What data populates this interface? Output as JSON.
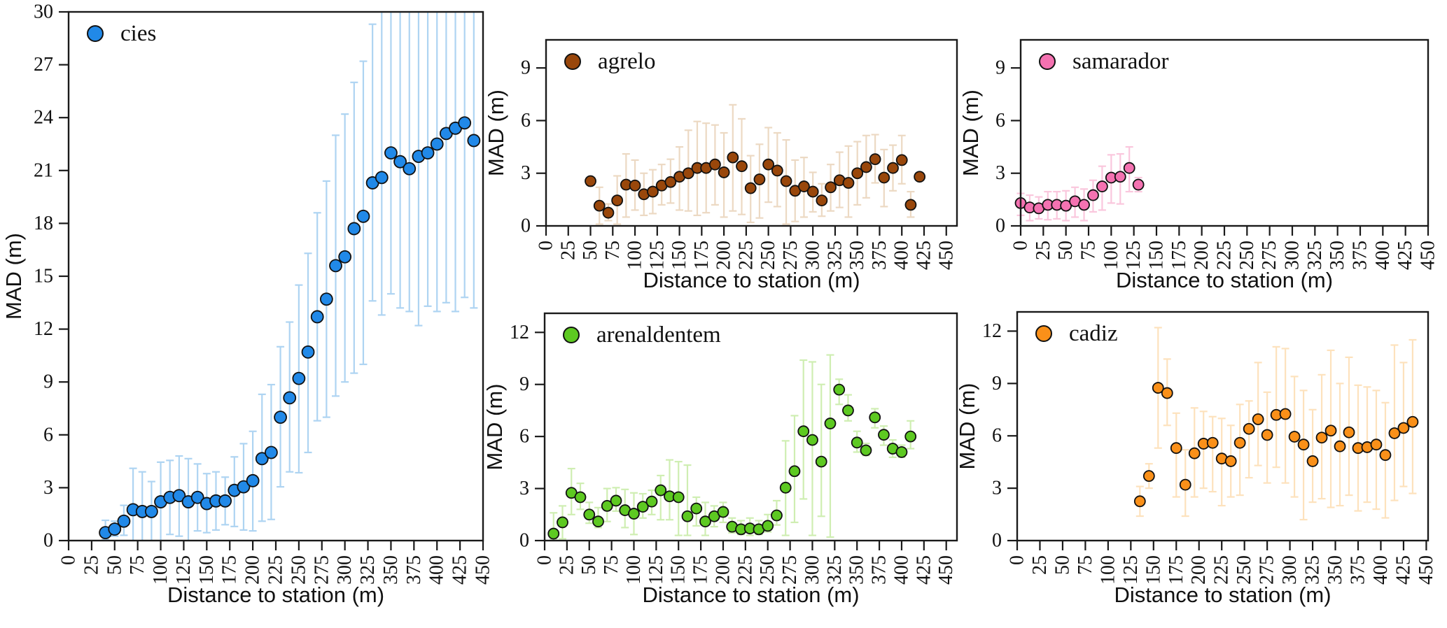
{
  "figure": {
    "xlabel": "Distance to station (m)",
    "ylabel": "MAD (m)",
    "background": "#ffffff",
    "axis_color": "#1a1a1a"
  },
  "chart_data": [
    {
      "type": "scatter",
      "name": "cies",
      "xlabel": "Distance to station (m)",
      "ylabel": "MAD (m)",
      "legend_position": "upper left",
      "grid": false,
      "error_bars": true,
      "marker_color": "#2189e8",
      "errorbar_color": "#aed4f2",
      "xlim": [
        0,
        450
      ],
      "ylim": [
        0,
        30
      ],
      "xticks": [
        0,
        25,
        50,
        75,
        100,
        125,
        150,
        175,
        200,
        225,
        250,
        275,
        300,
        325,
        350,
        375,
        400,
        425,
        450
      ],
      "yticks": [
        0,
        3,
        6,
        9,
        12,
        15,
        18,
        21,
        24,
        27,
        30
      ],
      "x": [
        40,
        50,
        60,
        70,
        80,
        90,
        100,
        110,
        120,
        130,
        140,
        150,
        160,
        170,
        180,
        190,
        200,
        210,
        220,
        230,
        240,
        250,
        260,
        270,
        280,
        290,
        300,
        310,
        320,
        330,
        340,
        350,
        360,
        370,
        380,
        390,
        400,
        410,
        420,
        430,
        440
      ],
      "y": [
        0.45,
        0.65,
        1.1,
        1.75,
        1.65,
        1.65,
        2.2,
        2.45,
        2.55,
        2.2,
        2.45,
        2.1,
        2.25,
        2.25,
        2.85,
        3.05,
        3.4,
        4.65,
        5.0,
        7.0,
        8.1,
        9.2,
        10.7,
        12.7,
        13.7,
        15.6,
        16.1,
        17.7,
        18.4,
        20.3,
        20.6,
        22.0,
        21.5,
        21.1,
        21.8,
        22.0,
        22.5,
        23.1,
        23.4,
        23.7,
        22.7
      ],
      "err_lo": [
        0.05,
        0.25,
        0.3,
        0.0,
        0.0,
        0.0,
        0.0,
        0.35,
        0.25,
        0.0,
        0.55,
        0.45,
        0.6,
        0.9,
        0.8,
        0.6,
        0.55,
        1.1,
        1.2,
        3.05,
        3.9,
        3.85,
        5.0,
        6.8,
        7.0,
        8.2,
        9.0,
        9.5,
        10.0,
        13.6,
        12.8,
        14.0,
        13.2,
        13.0,
        12.2,
        13.3,
        13.0,
        13.5,
        13.0,
        13.8,
        13.2
      ],
      "err_hi": [
        1.15,
        1.1,
        2.0,
        4.1,
        3.9,
        3.35,
        4.45,
        4.55,
        4.8,
        4.65,
        4.35,
        3.8,
        3.9,
        3.6,
        4.75,
        5.5,
        6.2,
        8.3,
        8.85,
        11.0,
        12.4,
        14.5,
        16.3,
        18.6,
        20.4,
        23.0,
        24.2,
        26.0,
        27.2,
        29.3,
        30,
        30,
        30,
        30,
        30,
        30,
        30,
        30,
        30,
        30,
        30
      ]
    },
    {
      "type": "scatter",
      "name": "agrelo",
      "xlabel": "Distance to station (m)",
      "ylabel": "MAD (m)",
      "legend_position": "upper left",
      "grid": false,
      "error_bars": true,
      "marker_color": "#99470b",
      "errorbar_color": "#ecd9c3",
      "xlim": [
        0,
        462
      ],
      "ylim": [
        0,
        10.6
      ],
      "xticks": [
        0,
        25,
        50,
        75,
        100,
        125,
        150,
        175,
        200,
        225,
        250,
        275,
        300,
        325,
        350,
        375,
        400,
        425,
        450
      ],
      "yticks": [
        0,
        3,
        6,
        9
      ],
      "x": [
        50,
        60,
        70,
        80,
        90,
        100,
        110,
        120,
        130,
        140,
        150,
        160,
        170,
        180,
        190,
        200,
        210,
        220,
        230,
        240,
        250,
        260,
        270,
        280,
        290,
        300,
        310,
        320,
        330,
        340,
        350,
        360,
        370,
        380,
        390,
        400,
        410,
        420
      ],
      "y": [
        2.55,
        1.15,
        0.75,
        1.45,
        2.35,
        2.3,
        1.8,
        1.95,
        2.3,
        2.5,
        2.8,
        3.0,
        3.3,
        3.3,
        3.5,
        3.05,
        3.9,
        3.4,
        2.15,
        2.65,
        3.5,
        3.15,
        2.55,
        2.0,
        2.25,
        1.95,
        1.45,
        2.2,
        2.6,
        2.45,
        3.0,
        3.35,
        3.8,
        2.75,
        3.3,
        3.75,
        1.2,
        2.8
      ],
      "err_lo": [
        2.4,
        0.1,
        0.3,
        0.1,
        0.5,
        0.9,
        0.6,
        0.7,
        1.2,
        1.3,
        0.9,
        0.85,
        0.6,
        0.75,
        1.2,
        0.5,
        0.85,
        0.65,
        0.2,
        0.45,
        1.35,
        1.1,
        0.1,
        0.25,
        0.5,
        0.8,
        0.55,
        0.85,
        1.05,
        0.5,
        1.2,
        1.6,
        2.45,
        1.1,
        2.0,
        2.4,
        0.5,
        2.6
      ],
      "err_hi": [
        2.7,
        2.2,
        1.25,
        2.85,
        4.1,
        3.75,
        3.0,
        3.2,
        3.5,
        3.8,
        4.5,
        5.45,
        5.95,
        5.85,
        5.75,
        5.3,
        6.9,
        6.1,
        4.0,
        4.65,
        5.6,
        5.3,
        4.9,
        3.75,
        3.9,
        3.05,
        2.4,
        3.5,
        4.2,
        4.55,
        4.8,
        5.15,
        5.2,
        4.35,
        4.6,
        5.15,
        1.95,
        3.0
      ]
    },
    {
      "type": "scatter",
      "name": "samarador",
      "xlabel": "Distance to station (m)",
      "ylabel": "MAD (m)",
      "legend_position": "upper left",
      "grid": false,
      "error_bars": true,
      "marker_color": "#f472b1",
      "errorbar_color": "#fac7dd",
      "xlim": [
        0,
        450
      ],
      "ylim": [
        0,
        10.6
      ],
      "xticks": [
        0,
        25,
        50,
        75,
        100,
        125,
        150,
        175,
        200,
        225,
        250,
        275,
        300,
        325,
        350,
        375,
        400,
        425,
        450
      ],
      "yticks": [
        0,
        3,
        6,
        9
      ],
      "x": [
        0,
        10,
        20,
        30,
        40,
        50,
        60,
        70,
        80,
        90,
        100,
        110,
        120,
        130
      ],
      "y": [
        1.3,
        1.05,
        1.0,
        1.2,
        1.2,
        1.15,
        1.4,
        1.2,
        1.75,
        2.25,
        2.75,
        2.8,
        3.3,
        2.35
      ],
      "err_lo": [
        0.6,
        0.3,
        0.4,
        0.35,
        0.4,
        0.3,
        0.5,
        0.3,
        0.8,
        0.9,
        1.3,
        1.25,
        1.95,
        1.95
      ],
      "err_hi": [
        1.85,
        1.75,
        1.65,
        1.95,
        1.95,
        2.0,
        2.2,
        2.1,
        2.6,
        3.4,
        4.05,
        4.1,
        4.5,
        2.75
      ]
    },
    {
      "type": "scatter",
      "name": "arenaldentem",
      "xlabel": "Distance to station (m)",
      "ylabel": "MAD (m)",
      "legend_position": "upper left",
      "grid": false,
      "error_bars": true,
      "marker_color": "#5dc921",
      "errorbar_color": "#cfeeb2",
      "xlim": [
        0,
        462
      ],
      "ylim": [
        0,
        13.1
      ],
      "xticks": [
        0,
        25,
        50,
        75,
        100,
        125,
        150,
        175,
        200,
        225,
        250,
        275,
        300,
        325,
        350,
        375,
        400,
        425,
        450
      ],
      "yticks": [
        0,
        3,
        6,
        9,
        12
      ],
      "x": [
        10,
        20,
        30,
        40,
        50,
        60,
        70,
        80,
        90,
        100,
        110,
        120,
        130,
        140,
        150,
        160,
        170,
        180,
        190,
        200,
        210,
        220,
        230,
        240,
        250,
        260,
        270,
        280,
        290,
        300,
        310,
        320,
        330,
        340,
        350,
        360,
        370,
        380,
        390,
        400,
        410
      ],
      "y": [
        0.4,
        1.05,
        2.75,
        2.5,
        1.5,
        1.1,
        2.0,
        2.3,
        1.75,
        1.55,
        1.95,
        2.25,
        2.9,
        2.55,
        2.5,
        1.4,
        1.85,
        1.1,
        1.4,
        1.65,
        0.8,
        0.65,
        0.7,
        0.65,
        0.85,
        1.45,
        3.05,
        4.0,
        6.3,
        5.8,
        4.55,
        6.75,
        8.7,
        7.5,
        5.65,
        5.2,
        7.1,
        6.1,
        5.3,
        5.1,
        6.0
      ],
      "err_lo": [
        0.1,
        0.1,
        1.5,
        1.8,
        1.0,
        0.75,
        1.1,
        1.7,
        0.75,
        0.35,
        1.3,
        1.5,
        1.2,
        1.2,
        0.3,
        0.3,
        0.85,
        0.3,
        0.8,
        1.05,
        0.45,
        0.35,
        0.3,
        0.35,
        0.5,
        0.9,
        0.3,
        1.05,
        2.4,
        0.3,
        1.4,
        0.2,
        7.85,
        6.9,
        5.1,
        4.9,
        6.5,
        5.5,
        4.8,
        4.8,
        5.3
      ],
      "err_hi": [
        1.6,
        2.0,
        4.15,
        3.3,
        2.2,
        1.9,
        3.0,
        3.05,
        2.95,
        2.75,
        2.7,
        2.9,
        3.75,
        4.65,
        4.55,
        4.35,
        2.5,
        2.2,
        2.0,
        2.2,
        1.3,
        1.15,
        1.3,
        1.15,
        1.5,
        2.3,
        5.75,
        7.2,
        10.4,
        10.3,
        9.0,
        10.7,
        9.3,
        8.4,
        6.3,
        5.6,
        7.6,
        6.6,
        5.8,
        5.5,
        6.9
      ]
    },
    {
      "type": "scatter",
      "name": "cadiz",
      "xlabel": "Distance to station (m)",
      "ylabel": "MAD (m)",
      "legend_position": "upper left",
      "grid": false,
      "error_bars": true,
      "marker_color": "#fa9019",
      "errorbar_color": "#fde2bd",
      "xlim": [
        0,
        452
      ],
      "ylim": [
        0,
        13.1
      ],
      "xticks": [
        0,
        25,
        50,
        75,
        100,
        125,
        150,
        175,
        200,
        225,
        250,
        275,
        300,
        325,
        350,
        375,
        400,
        425,
        450
      ],
      "yticks": [
        0,
        3,
        6,
        9,
        12
      ],
      "x": [
        135,
        145,
        155,
        165,
        175,
        185,
        195,
        205,
        215,
        225,
        235,
        245,
        255,
        265,
        275,
        285,
        295,
        305,
        315,
        325,
        335,
        345,
        355,
        365,
        375,
        385,
        395,
        405,
        415,
        425,
        435
      ],
      "y": [
        2.25,
        3.7,
        8.75,
        8.45,
        5.3,
        3.2,
        5.0,
        5.55,
        5.6,
        4.7,
        4.55,
        5.6,
        6.4,
        6.95,
        6.05,
        7.2,
        7.25,
        5.95,
        5.5,
        4.55,
        5.9,
        6.3,
        5.4,
        6.2,
        5.3,
        5.35,
        5.5,
        4.9,
        6.15,
        6.45,
        6.8
      ],
      "err_lo": [
        1.4,
        3.0,
        5.3,
        6.6,
        2.5,
        1.4,
        2.5,
        3.0,
        2.8,
        2.0,
        2.5,
        2.6,
        3.6,
        4.3,
        3.3,
        4.2,
        3.3,
        2.5,
        1.2,
        2.2,
        2.4,
        1.9,
        2.0,
        2.6,
        1.7,
        2.2,
        1.8,
        1.3,
        2.3,
        3.1,
        2.7
      ],
      "err_hi": [
        3.1,
        4.4,
        12.2,
        10.4,
        7.3,
        5.2,
        7.6,
        7.4,
        7.1,
        7.0,
        6.6,
        7.8,
        8.0,
        10.2,
        8.5,
        11.1,
        11.0,
        9.4,
        8.6,
        7.5,
        9.5,
        10.9,
        9.0,
        10.5,
        8.9,
        8.8,
        8.6,
        7.9,
        11.2,
        10.2,
        11.5
      ]
    }
  ]
}
